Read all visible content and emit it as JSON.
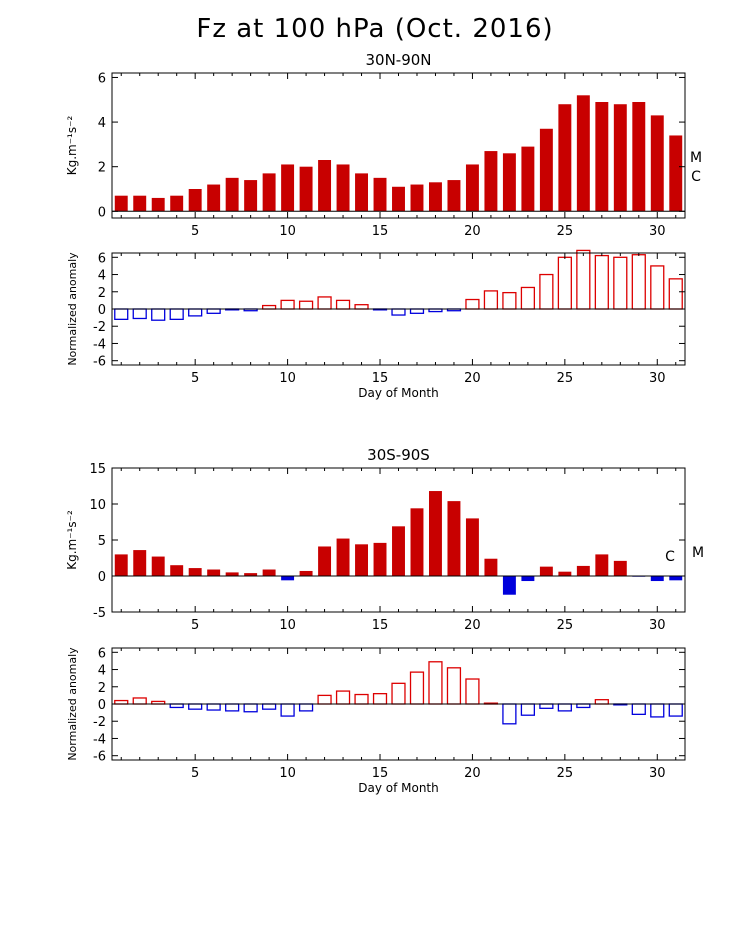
{
  "title": "Fz at 100 hPa (Oct. 2016)",
  "colors": {
    "positive": "#c80000",
    "negative": "#0000dc",
    "positive_outline": "#dd0000",
    "negative_outline": "#0000dd"
  },
  "chart_data": [
    {
      "type": "bar",
      "title": "30N-90N",
      "ylabel": "Kg.m⁻¹s⁻²",
      "xlabel": "",
      "ylim": [
        -0.3,
        6.2
      ],
      "yticks": [
        0,
        2,
        4,
        6
      ],
      "xticks": [
        5,
        10,
        15,
        20,
        25,
        30
      ],
      "x": [
        1,
        2,
        3,
        4,
        5,
        6,
        7,
        8,
        9,
        10,
        11,
        12,
        13,
        14,
        15,
        16,
        17,
        18,
        19,
        20,
        21,
        22,
        23,
        24,
        25,
        26,
        27,
        28,
        29,
        30,
        31
      ],
      "values": [
        0.7,
        0.7,
        0.6,
        0.7,
        1.0,
        1.2,
        1.5,
        1.4,
        1.7,
        2.1,
        2.0,
        2.3,
        2.1,
        1.7,
        1.5,
        1.1,
        1.2,
        1.3,
        1.4,
        2.1,
        2.7,
        2.6,
        2.9,
        3.7,
        4.8,
        5.2,
        4.9,
        4.8,
        4.9,
        4.3,
        3.4
      ],
      "fill": "solid",
      "annotations": [
        "M",
        "C"
      ]
    },
    {
      "type": "bar",
      "title": "",
      "ylabel": "Normalized anomaly",
      "xlabel": "Day of Month",
      "ylim": [
        -6.5,
        6.5
      ],
      "yticks": [
        -6,
        -4,
        -2,
        0,
        2,
        4,
        6
      ],
      "xticks": [
        5,
        10,
        15,
        20,
        25,
        30
      ],
      "x": [
        1,
        2,
        3,
        4,
        5,
        6,
        7,
        8,
        9,
        10,
        11,
        12,
        13,
        14,
        15,
        16,
        17,
        18,
        19,
        20,
        21,
        22,
        23,
        24,
        25,
        26,
        27,
        28,
        29,
        30,
        31
      ],
      "values": [
        -1.2,
        -1.1,
        -1.3,
        -1.2,
        -0.8,
        -0.5,
        -0.1,
        -0.2,
        0.4,
        1.0,
        0.9,
        1.4,
        1.0,
        0.5,
        -0.1,
        -0.7,
        -0.5,
        -0.3,
        -0.2,
        1.1,
        2.1,
        1.9,
        2.5,
        4.0,
        6.0,
        6.8,
        6.2,
        6.0,
        6.3,
        5.0,
        3.5
      ],
      "fill": "outline"
    },
    {
      "type": "bar",
      "title": "30S-90S",
      "ylabel": "Kg.m⁻¹s⁻²",
      "xlabel": "",
      "ylim": [
        -5,
        15
      ],
      "yticks": [
        -5,
        0,
        5,
        10,
        15
      ],
      "xticks": [
        5,
        10,
        15,
        20,
        25,
        30
      ],
      "x": [
        1,
        2,
        3,
        4,
        5,
        6,
        7,
        8,
        9,
        10,
        11,
        12,
        13,
        14,
        15,
        16,
        17,
        18,
        19,
        20,
        21,
        22,
        23,
        24,
        25,
        26,
        27,
        28,
        29,
        30,
        31
      ],
      "values": [
        3.0,
        3.6,
        2.7,
        1.5,
        1.1,
        0.9,
        0.5,
        0.4,
        0.9,
        -0.6,
        0.7,
        4.1,
        5.2,
        4.4,
        4.6,
        6.9,
        9.4,
        11.8,
        10.4,
        8.0,
        2.4,
        -2.6,
        -0.7,
        1.3,
        0.6,
        1.4,
        3.0,
        2.1,
        -0.1,
        -0.7,
        -0.6
      ],
      "fill": "solid",
      "annotations": [
        "C",
        "M"
      ]
    },
    {
      "type": "bar",
      "title": "",
      "ylabel": "Normalized anomaly",
      "xlabel": "Day of Month",
      "ylim": [
        -6.5,
        6.5
      ],
      "yticks": [
        -6,
        -4,
        -2,
        0,
        2,
        4,
        6
      ],
      "xticks": [
        5,
        10,
        15,
        20,
        25,
        30
      ],
      "x": [
        1,
        2,
        3,
        4,
        5,
        6,
        7,
        8,
        9,
        10,
        11,
        12,
        13,
        14,
        15,
        16,
        17,
        18,
        19,
        20,
        21,
        22,
        23,
        24,
        25,
        26,
        27,
        28,
        29,
        30,
        31
      ],
      "values": [
        0.4,
        0.7,
        0.3,
        -0.4,
        -0.6,
        -0.7,
        -0.8,
        -0.9,
        -0.6,
        -1.4,
        -0.8,
        1.0,
        1.5,
        1.1,
        1.2,
        2.4,
        3.7,
        4.9,
        4.2,
        2.9,
        0.1,
        -2.3,
        -1.3,
        -0.5,
        -0.8,
        -0.4,
        0.5,
        -0.1,
        -1.2,
        -1.5,
        -1.4
      ],
      "fill": "outline"
    }
  ]
}
